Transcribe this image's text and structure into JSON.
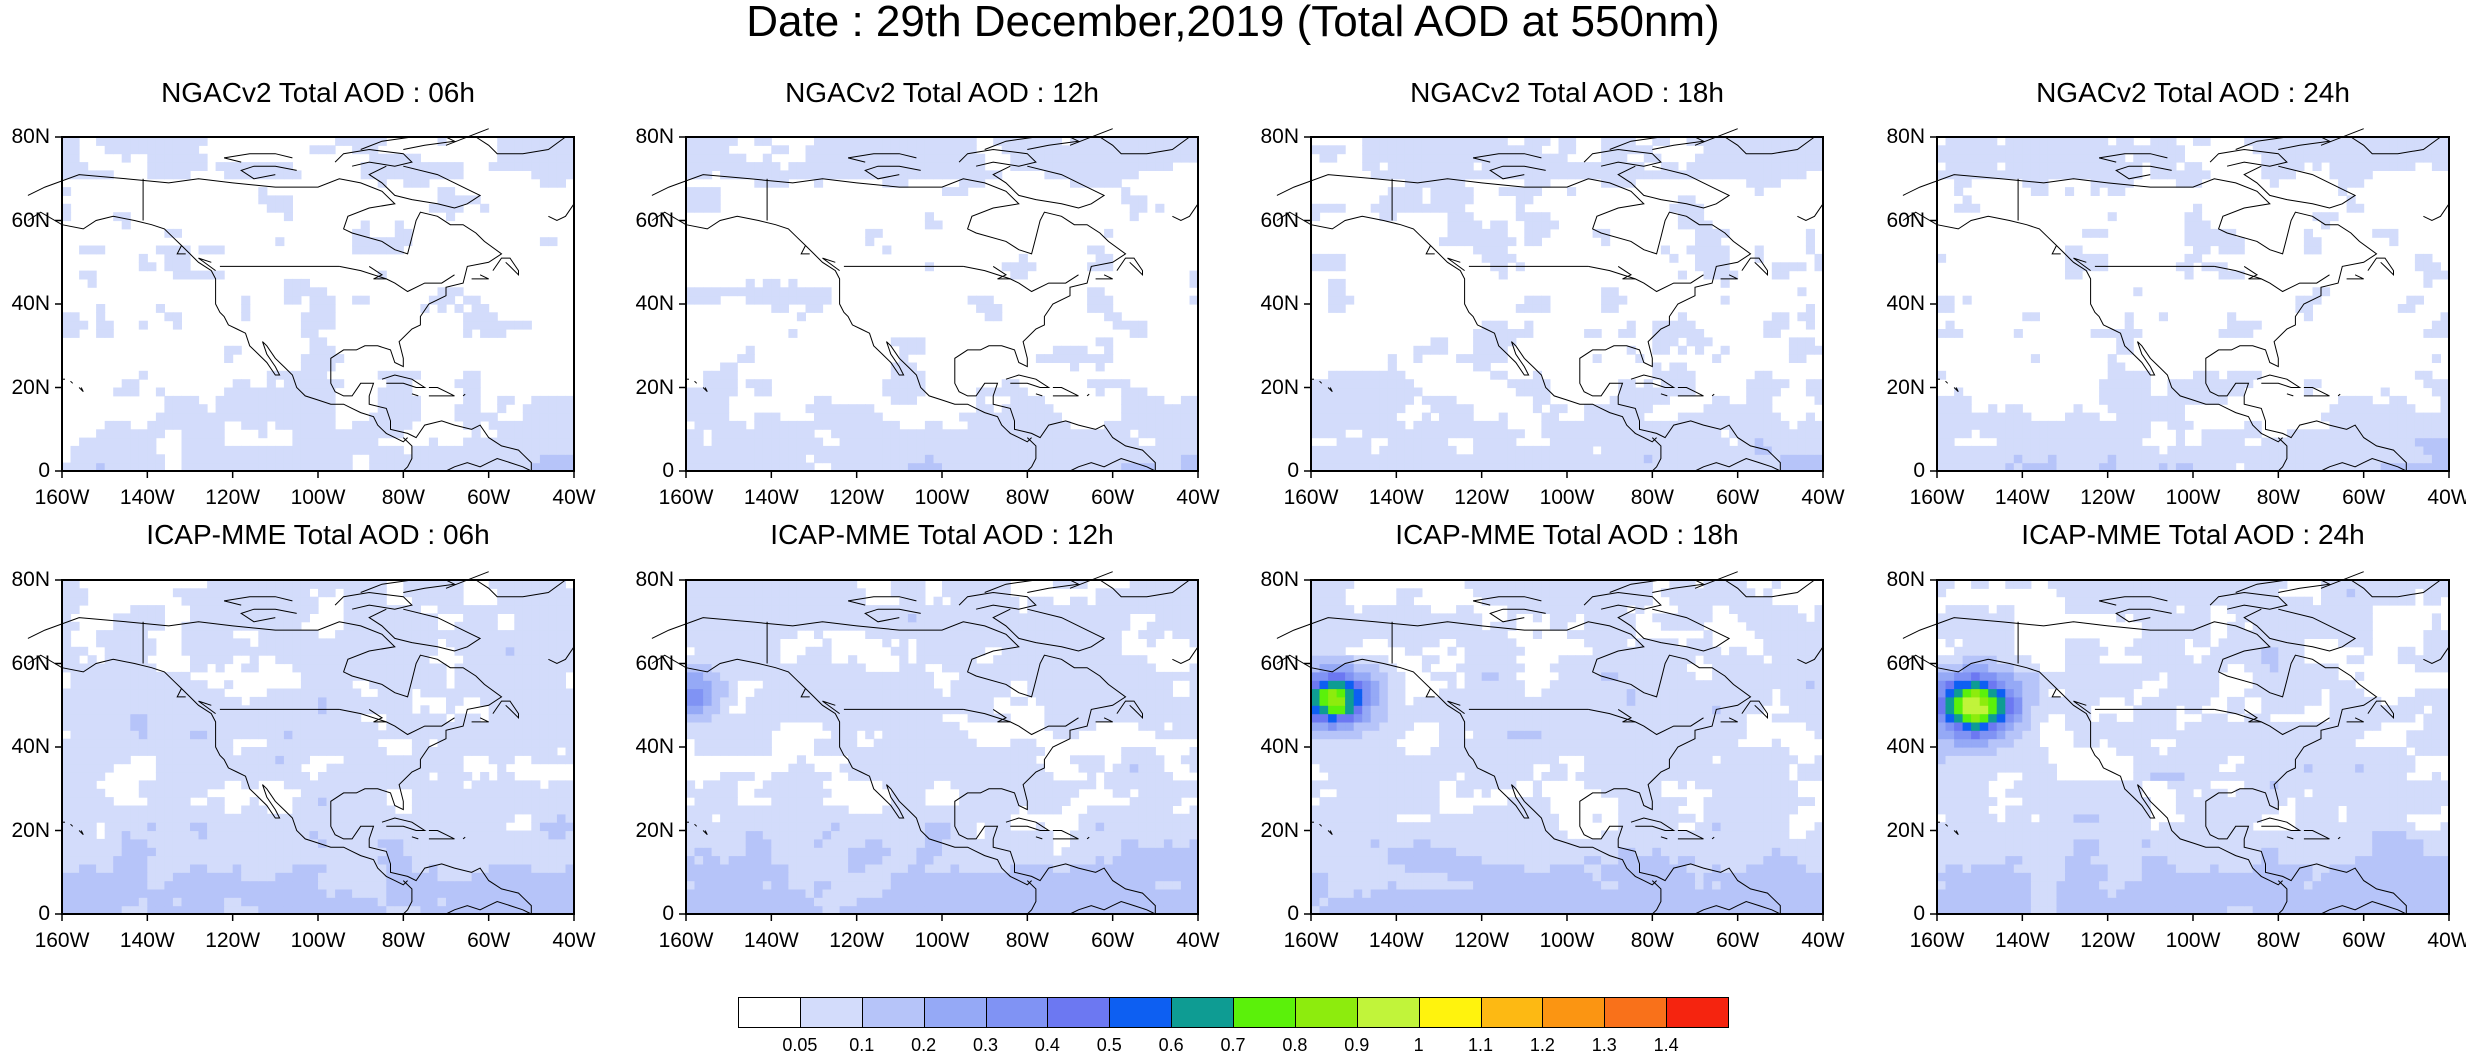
{
  "title": "Date : 29th December,2019 (Total AOD at 550nm)",
  "axes": {
    "y_ticks": [
      "80N",
      "60N",
      "40N",
      "20N",
      "0"
    ],
    "x_ticks": [
      "160W",
      "140W",
      "120W",
      "100W",
      "80W",
      "60W",
      "40W"
    ],
    "lon_range": [
      -160,
      -40
    ],
    "lat_range": [
      0,
      80
    ]
  },
  "panels": [
    {
      "title": "NGACv2 Total AOD : 06h",
      "model": "NGACv2",
      "lead": "06h"
    },
    {
      "title": "NGACv2 Total AOD : 12h",
      "model": "NGACv2",
      "lead": "12h"
    },
    {
      "title": "NGACv2 Total AOD : 18h",
      "model": "NGACv2",
      "lead": "18h"
    },
    {
      "title": "NGACv2 Total AOD : 24h",
      "model": "NGACv2",
      "lead": "24h"
    },
    {
      "title": "ICAP-MME Total AOD : 06h",
      "model": "ICAP-MME",
      "lead": "06h"
    },
    {
      "title": "ICAP-MME Total AOD : 12h",
      "model": "ICAP-MME",
      "lead": "12h"
    },
    {
      "title": "ICAP-MME Total AOD : 18h",
      "model": "ICAP-MME",
      "lead": "18h"
    },
    {
      "title": "ICAP-MME Total AOD : 24h",
      "model": "ICAP-MME",
      "lead": "24h"
    }
  ],
  "colorbar": {
    "labels": [
      "0.05",
      "0.1",
      "0.2",
      "0.3",
      "0.4",
      "0.5",
      "0.6",
      "0.7",
      "0.8",
      "0.9",
      "1",
      "1.1",
      "1.2",
      "1.3",
      "1.4"
    ],
    "colors": [
      "#ffffff",
      "#d3dcfb",
      "#b6c4f9",
      "#95a9f6",
      "#8093f4",
      "#6c78f2",
      "#0d5ff2",
      "#0e9c93",
      "#5bf10a",
      "#8dec0d",
      "#c1f43a",
      "#fff30d",
      "#fdb913",
      "#fb9512",
      "#f9711a",
      "#f5240f"
    ]
  }
}
